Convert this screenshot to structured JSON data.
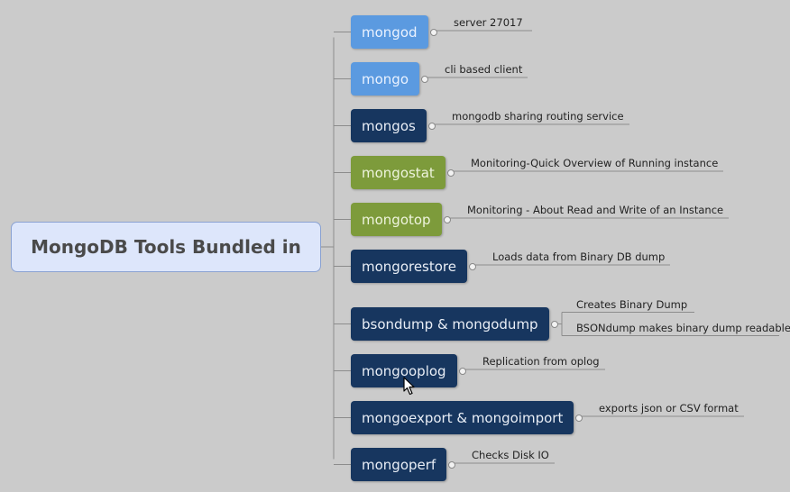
{
  "root": {
    "label": "MongoDB Tools Bundled in"
  },
  "colors": {
    "blue": "#5b9ae0",
    "dark": "#17365f",
    "green": "#7d9b3b",
    "root_fill": "#dde6fb",
    "line": "#8c8c8c"
  },
  "tools": [
    {
      "label": "mongod",
      "color": "blue",
      "notes": [
        "server 27017"
      ]
    },
    {
      "label": "mongo",
      "color": "blue",
      "notes": [
        "cli based client"
      ]
    },
    {
      "label": "mongos",
      "color": "dark",
      "notes": [
        "mongodb sharing routing service"
      ]
    },
    {
      "label": "mongostat",
      "color": "green",
      "notes": [
        "Monitoring-Quick Overview of Running instance"
      ]
    },
    {
      "label": "mongotop",
      "color": "green",
      "notes": [
        "Monitoring - About Read and Write of an Instance"
      ]
    },
    {
      "label": "mongorestore",
      "color": "dark",
      "notes": [
        "Loads data from Binary DB dump"
      ]
    },
    {
      "label": "bsondump & mongodump",
      "color": "dark",
      "notes": [
        "Creates Binary Dump",
        "BSONdump makes binary dump readable"
      ]
    },
    {
      "label": "mongooplog",
      "color": "dark",
      "notes": [
        "Replication from oplog"
      ]
    },
    {
      "label": "mongoexport & mongoimport",
      "color": "dark",
      "notes": [
        "exports json or CSV format"
      ]
    },
    {
      "label": "mongoperf",
      "color": "dark",
      "notes": [
        "Checks Disk IO"
      ]
    }
  ]
}
